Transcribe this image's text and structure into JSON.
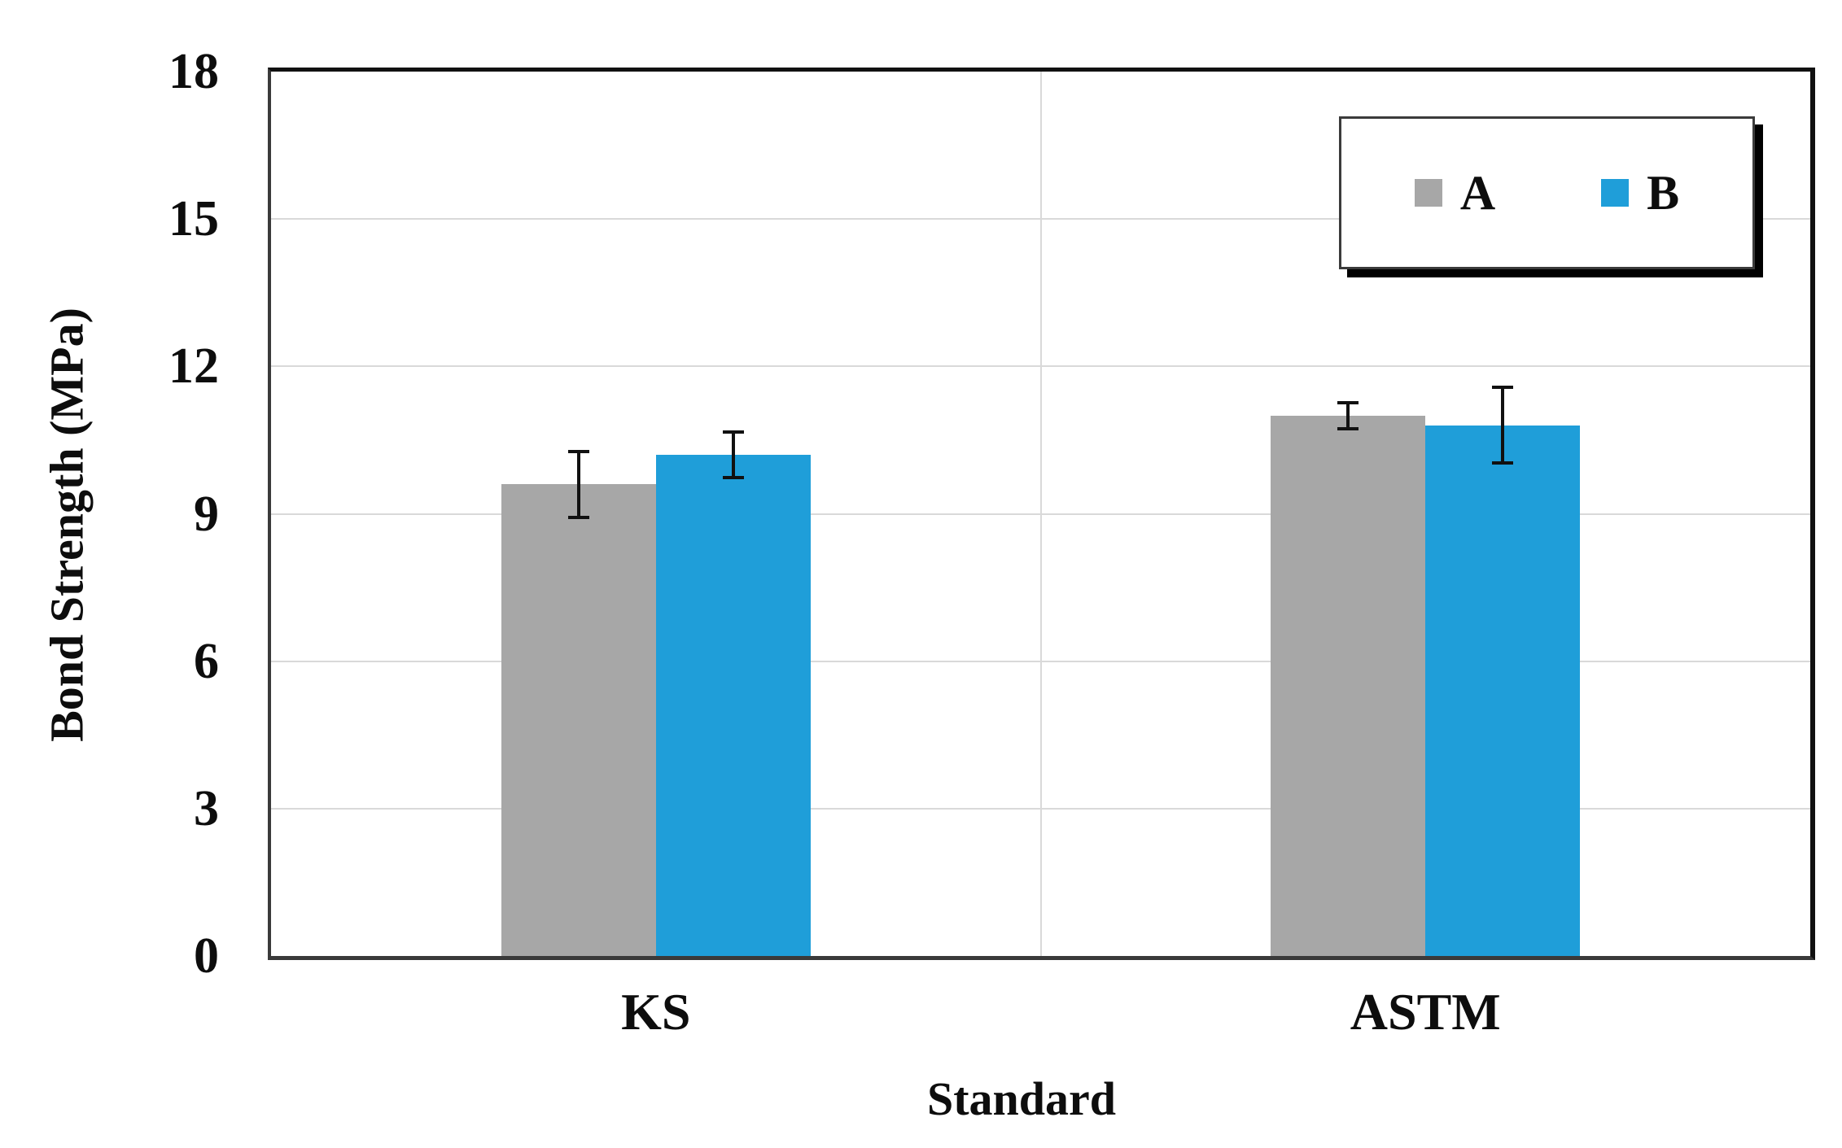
{
  "chart_data": {
    "type": "bar",
    "title": "",
    "xlabel": "Standard",
    "ylabel": "Bond Strength (MPa)",
    "categories": [
      "KS",
      "ASTM"
    ],
    "series": [
      {
        "name": "A",
        "color": "#a7a7a7",
        "values": [
          9.6,
          11.0
        ],
        "errors": [
          0.7,
          0.3
        ]
      },
      {
        "name": "B",
        "color": "#1f9ed9",
        "values": [
          10.2,
          10.8
        ],
        "errors": [
          0.5,
          0.8
        ]
      }
    ],
    "ylim": [
      0,
      18
    ],
    "yticks": [
      0,
      3,
      6,
      9,
      12,
      15,
      18
    ],
    "grid": true,
    "grid_color": "#d9d9d9",
    "category_divider": true,
    "errorbar_color": "#111111",
    "legend_position": "top-right",
    "legend_items": [
      "A",
      "B"
    ]
  }
}
